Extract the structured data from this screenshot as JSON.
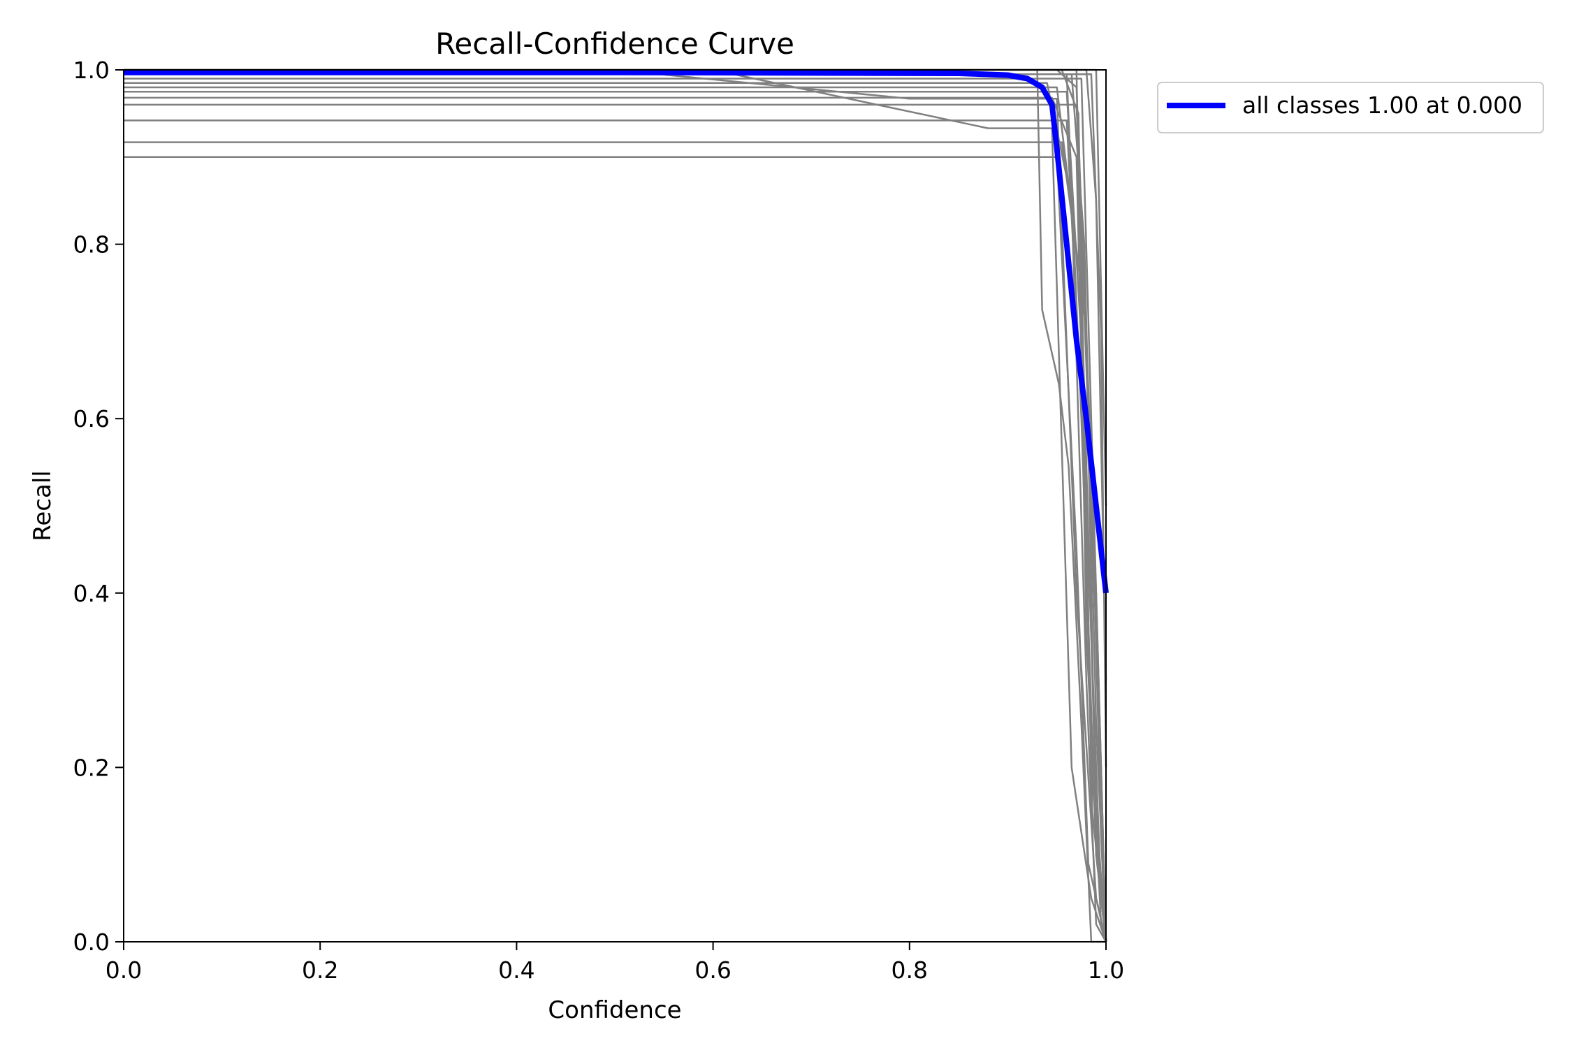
{
  "chart_data": {
    "type": "line",
    "title": "Recall-Confidence Curve",
    "xlabel": "Confidence",
    "ylabel": "Recall",
    "xlim": [
      0,
      1
    ],
    "ylim": [
      0,
      1
    ],
    "xticks": [
      "0.0",
      "0.2",
      "0.4",
      "0.6",
      "0.8",
      "1.0"
    ],
    "yticks": [
      "0.0",
      "0.2",
      "0.4",
      "0.6",
      "0.8",
      "1.0"
    ],
    "grid": false,
    "legend_position": "outside-top-right",
    "colors": {
      "class_curves": "#808080",
      "all_classes": "#0000ff",
      "axes": "#000000"
    },
    "legend": [
      {
        "label": "all classes 1.00 at 0.000",
        "color": "#0000ff"
      }
    ],
    "series": [
      {
        "x": [
          0,
          0.95,
          0.97,
          0.985,
          0.995,
          1.0
        ],
        "y": [
          1.0,
          1.0,
          0.98,
          0.55,
          0.12,
          0.0
        ]
      },
      {
        "x": [
          0,
          0.96,
          0.975,
          0.99,
          1.0
        ],
        "y": [
          0.995,
          0.995,
          0.6,
          0.1,
          0.0
        ]
      },
      {
        "x": [
          0,
          0.5,
          0.8,
          0.95,
          0.97,
          0.99,
          1.0
        ],
        "y": [
          1.0,
          1.0,
          0.967,
          0.967,
          0.4,
          0.05,
          0.0
        ]
      },
      {
        "x": [
          0,
          0.6,
          0.88,
          0.945,
          0.965,
          0.985,
          1.0
        ],
        "y": [
          1.0,
          1.0,
          0.933,
          0.933,
          0.2,
          0.05,
          0.0
        ]
      },
      {
        "x": [
          0,
          0.93,
          0.935,
          0.952,
          0.962,
          0.975,
          0.985,
          1.0
        ],
        "y": [
          1.0,
          1.0,
          0.725,
          0.64,
          0.545,
          0.25,
          0.0,
          0.0
        ]
      },
      {
        "x": [
          0,
          0.94,
          0.965,
          0.98,
          0.99,
          1.0
        ],
        "y": [
          0.985,
          0.985,
          0.85,
          0.3,
          0.02,
          0.0
        ]
      },
      {
        "x": [
          0,
          0.95,
          0.98,
          0.99,
          1.0
        ],
        "y": [
          0.98,
          0.98,
          0.7,
          0.1,
          0.0
        ]
      },
      {
        "x": [
          0,
          0.945,
          0.97,
          0.985,
          1.0
        ],
        "y": [
          0.968,
          0.968,
          0.9,
          0.2,
          0.0
        ]
      },
      {
        "x": [
          0,
          0.96,
          0.98,
          0.995,
          1.0
        ],
        "y": [
          0.942,
          0.942,
          0.5,
          0.05,
          0.0
        ]
      },
      {
        "x": [
          0,
          0.955,
          0.975,
          0.99,
          1.0
        ],
        "y": [
          0.917,
          0.917,
          0.75,
          0.15,
          0.0
        ]
      },
      {
        "x": [
          0,
          0.95,
          0.97,
          0.982,
          1.0
        ],
        "y": [
          0.9,
          0.9,
          0.45,
          0.09,
          0.0
        ]
      },
      {
        "x": [
          0,
          0.965,
          0.978,
          0.99,
          1.0
        ],
        "y": [
          0.995,
          0.995,
          0.8,
          0.25,
          0.0
        ]
      },
      {
        "x": [
          0,
          0.97,
          0.98,
          0.995,
          1.0
        ],
        "y": [
          1.0,
          1.0,
          0.35,
          0.02,
          0.0
        ]
      },
      {
        "x": [
          0,
          0.975,
          0.985,
          1.0
        ],
        "y": [
          0.99,
          0.99,
          0.6,
          0.0
        ]
      },
      {
        "x": [
          0,
          0.955,
          0.972,
          0.986,
          1.0
        ],
        "y": [
          1.0,
          1.0,
          0.95,
          0.15,
          0.0
        ]
      },
      {
        "x": [
          0,
          0.96,
          0.99,
          1.0
        ],
        "y": [
          0.975,
          0.975,
          0.4,
          0.0
        ]
      },
      {
        "x": [
          0,
          0.98,
          0.99,
          1.0
        ],
        "y": [
          1.0,
          1.0,
          0.85,
          0.3
        ]
      },
      {
        "x": [
          0,
          0.985,
          0.995,
          1.0
        ],
        "y": [
          0.995,
          0.995,
          0.7,
          0.2
        ]
      },
      {
        "x": [
          0,
          0.99,
          1.0
        ],
        "y": [
          1.0,
          1.0,
          0.5
        ]
      },
      {
        "x": [
          0,
          0.97,
          0.992,
          1.0
        ],
        "y": [
          0.96,
          0.96,
          0.3,
          0.0
        ]
      }
    ],
    "aggregate_series": {
      "x": [
        0,
        0.5,
        0.85,
        0.9,
        0.92,
        0.935,
        0.945,
        0.95,
        0.96,
        0.97,
        0.98,
        0.99,
        1.0
      ],
      "y": [
        0.997,
        0.997,
        0.996,
        0.994,
        0.99,
        0.98,
        0.96,
        0.91,
        0.8,
        0.69,
        0.6,
        0.5,
        0.4
      ]
    }
  }
}
